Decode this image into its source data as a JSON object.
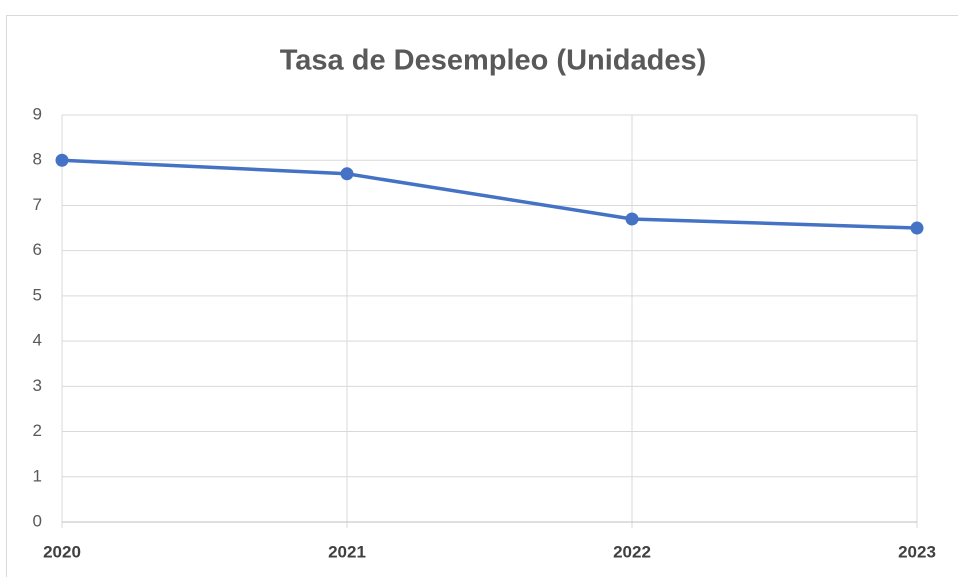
{
  "chart_data": {
    "type": "line",
    "title": "Tasa de Desempleo (Unidades)",
    "categories": [
      "2020",
      "2021",
      "2022",
      "2023"
    ],
    "values": [
      8.0,
      7.7,
      6.7,
      6.5
    ],
    "color": "#4472c4",
    "ylim": [
      0,
      9
    ],
    "yticks": [
      0,
      1,
      2,
      3,
      4,
      5,
      6,
      7,
      8,
      9
    ],
    "grid": true
  }
}
